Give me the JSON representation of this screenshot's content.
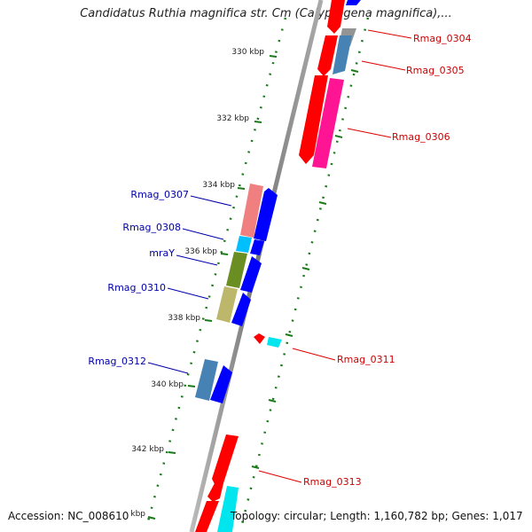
{
  "title": "Candidatus Ruthia magnifica str. Cm (Calyptogena magnifica),...",
  "footer": {
    "accession": "Accession: NC_008610",
    "topology": "Topology: circular; Length: 1,160,782 bp; Genes: 1,017"
  },
  "ruler": {
    "ticks": [
      "330 kbp",
      "332 kbp",
      "334 kbp",
      "336 kbp",
      "338 kbp",
      "340 kbp",
      "342 kbp",
      "kbp"
    ]
  },
  "genes": {
    "reverse_strand": [
      "Rmag_0304",
      "Rmag_0305",
      "Rmag_0306",
      "Rmag_0311",
      "Rmag_0313"
    ],
    "forward_strand": [
      "Rmag_0307",
      "Rmag_0308",
      "mraY",
      "Rmag_0310",
      "Rmag_0312"
    ]
  },
  "colors": {
    "reverse_label": "#cc0000",
    "forward_label": "#0000aa",
    "ruler": "#1a7a1a",
    "backbone": "#888888"
  }
}
